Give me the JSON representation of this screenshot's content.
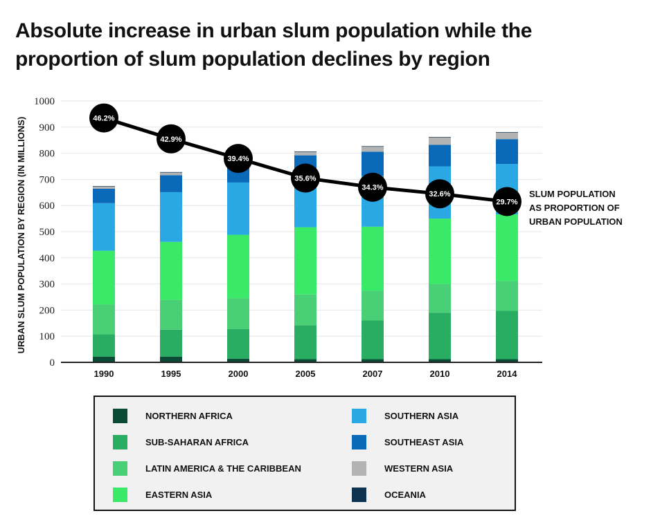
{
  "title": {
    "line1": "Absolute increase in urban slum population while the",
    "line2": "proportion of slum population declines by region"
  },
  "chart_data": {
    "type": "bar",
    "stacked": true,
    "ylabel": "URBAN SLUM POPULATION BY REGION (IN MILLIONS)",
    "ylim": [
      0,
      1000
    ],
    "yticks": [
      0,
      100,
      200,
      300,
      400,
      500,
      600,
      700,
      800,
      900,
      1000
    ],
    "grid": true,
    "categories": [
      "1990",
      "1995",
      "2000",
      "2005",
      "2007",
      "2010",
      "2014"
    ],
    "series": [
      {
        "name": "NORTHERN AFRICA",
        "color": "#0b4a34",
        "values": [
          22,
          22,
          14,
          12,
          12,
          12,
          12
        ]
      },
      {
        "name": "SUB-SAHARAN AFRICA",
        "color": "#28ad63",
        "values": [
          85,
          103,
          113,
          130,
          148,
          178,
          185
        ]
      },
      {
        "name": "LATIN AMERICA & THE CARIBBEAN",
        "color": "#49d076",
        "values": [
          115,
          114,
          118,
          118,
          114,
          110,
          114
        ]
      },
      {
        "name": "EASTERN ASIA",
        "color": "#39e967",
        "values": [
          205,
          222,
          243,
          257,
          245,
          250,
          255
        ]
      },
      {
        "name": "SOUTHERN ASIA",
        "color": "#2aa8e3",
        "values": [
          182,
          190,
          200,
          190,
          195,
          200,
          193
        ]
      },
      {
        "name": "SOUTHEAST ASIA",
        "color": "#0a6ab9",
        "values": [
          55,
          65,
          78,
          85,
          92,
          82,
          95
        ]
      },
      {
        "name": "WESTERN ASIA",
        "color": "#b3b3b3",
        "values": [
          8,
          10,
          12,
          13,
          19,
          28,
          25
        ]
      },
      {
        "name": "OCEANIA",
        "color": "#0d3351",
        "values": [
          2,
          2,
          2,
          2,
          2,
          2,
          2
        ]
      }
    ],
    "line_series": {
      "name": "SLUM POPULATION AS PROPORTION OF URBAN POPULATION",
      "label_lines": [
        "SLUM POPULATION",
        "AS PROPORTION OF",
        "URBAN POPULATION"
      ],
      "labels": [
        "46.2%",
        "42.9%",
        "39.4%",
        "35.6%",
        "34.3%",
        "32.6%",
        "29.7%"
      ],
      "plotted_at_millions": [
        935,
        855,
        780,
        705,
        670,
        645,
        615
      ]
    }
  },
  "legend": {
    "items": [
      {
        "label": "NORTHERN AFRICA",
        "color": "#0b4a34"
      },
      {
        "label": "SUB-SAHARAN AFRICA",
        "color": "#28ad63"
      },
      {
        "label": "LATIN AMERICA & THE CARIBBEAN",
        "color": "#49d076"
      },
      {
        "label": "EASTERN ASIA",
        "color": "#39e967"
      },
      {
        "label": "SOUTHERN ASIA",
        "color": "#2aa8e3"
      },
      {
        "label": "SOUTHEAST ASIA",
        "color": "#0a6ab9"
      },
      {
        "label": "WESTERN ASIA",
        "color": "#b3b3b3"
      },
      {
        "label": "OCEANIA",
        "color": "#0d3351"
      }
    ]
  }
}
